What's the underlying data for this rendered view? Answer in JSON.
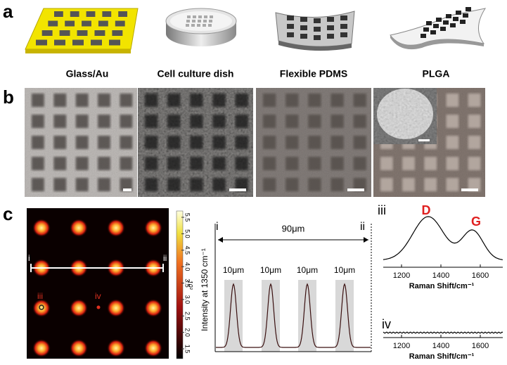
{
  "panel_labels": [
    "a",
    "b",
    "c"
  ],
  "substrates": [
    "Glass/Au",
    "Cell culture dish",
    "Flexible PDMS",
    "PLGA"
  ],
  "heatmap": {
    "line_labels": [
      "i",
      "ii"
    ],
    "point_labels": [
      "iii",
      "iv"
    ],
    "colorbar_ticks": [
      "1.5",
      "2.0",
      "2.5",
      "3.0",
      "3.5",
      "4.0",
      "4.5",
      "5.0",
      "5.5"
    ],
    "colorbar_unit": "10³"
  },
  "profile": {
    "ends": [
      "i",
      "ii"
    ],
    "span": "90μm",
    "widths": [
      "10μm",
      "10μm",
      "10μm",
      "10μm"
    ],
    "y_label": "Intensity at 1350 cm⁻¹"
  },
  "spectra": [
    {
      "label": "iii",
      "peaks": [
        "D",
        "G"
      ],
      "xticks": [
        "1200",
        "1400",
        "1600"
      ],
      "x_label": "Raman Shift/cm⁻¹"
    },
    {
      "label": "iv",
      "xticks": [
        "1200",
        "1400",
        "1600"
      ],
      "x_label": "Raman Shift/cm⁻¹"
    }
  ]
}
